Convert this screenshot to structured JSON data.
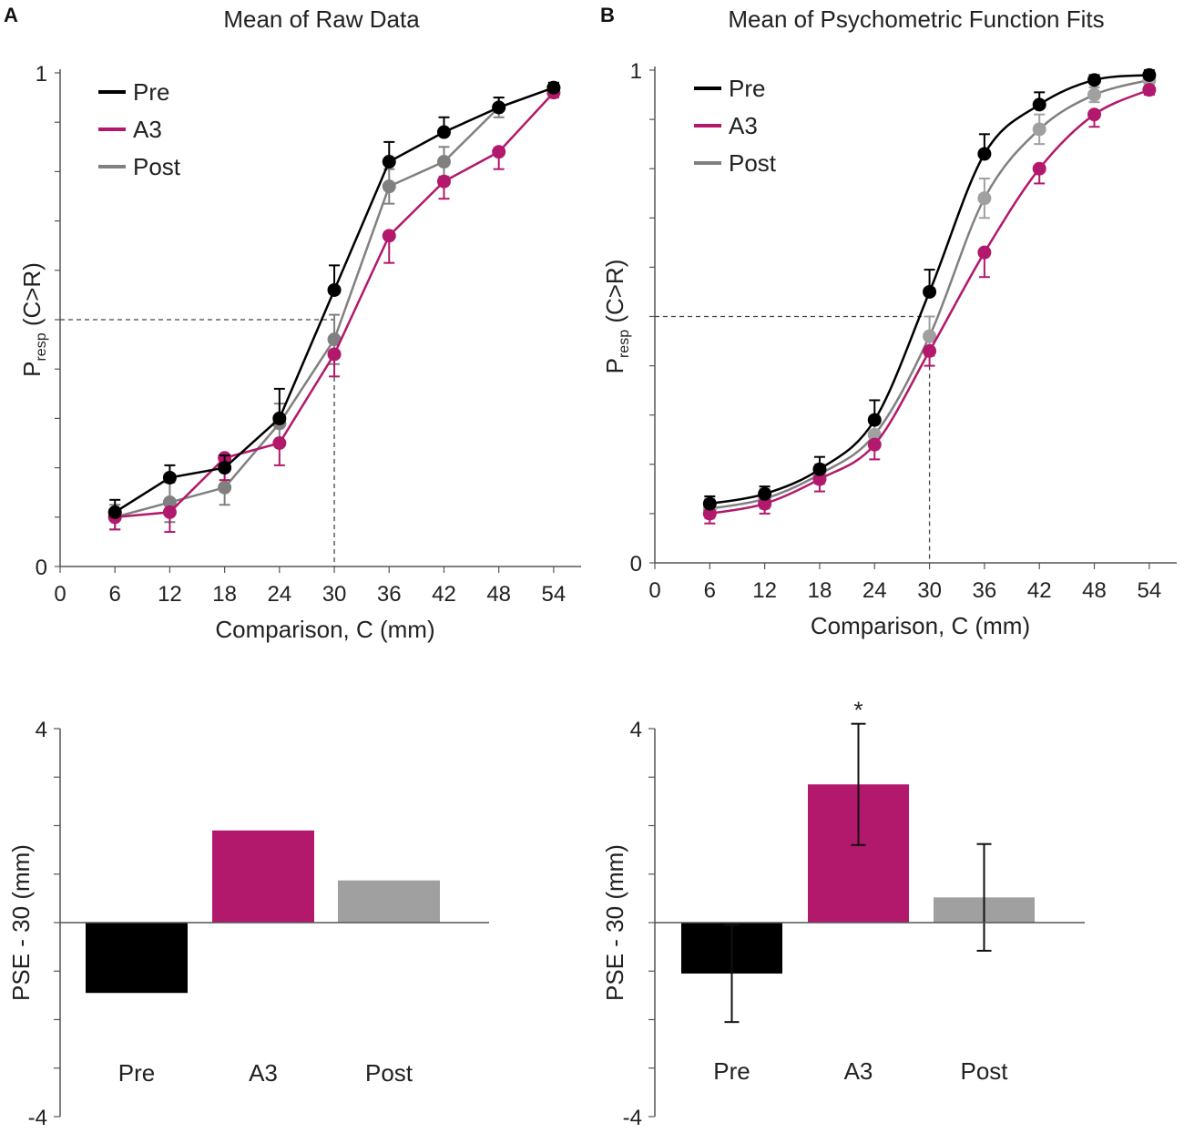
{
  "colors": {
    "Pre": "#000000",
    "A3": "#b2186b",
    "Post": "#808080",
    "Post_light": "#a0a0a0",
    "axis": "#555555"
  },
  "chart_data": [
    {
      "id": "raw",
      "panel_label": "A",
      "type": "line",
      "title": "Mean of Raw Data",
      "xlabel": "Comparison, C (mm)",
      "ylabel_main": "P",
      "ylabel_sub": "resp",
      "ylabel_rest": " (C>R)",
      "xlim": [
        0,
        57
      ],
      "ylim": [
        0,
        1
      ],
      "x_ticks": [
        0,
        6,
        12,
        18,
        24,
        30,
        36,
        42,
        48,
        54
      ],
      "y_tick_labels": [
        "0",
        "1"
      ],
      "reference_y": 0.5,
      "reference_x": 30,
      "x": [
        6,
        12,
        18,
        24,
        30,
        36,
        42,
        48,
        54
      ],
      "series": [
        {
          "name": "Pre",
          "values": [
            0.11,
            0.18,
            0.2,
            0.3,
            0.56,
            0.82,
            0.88,
            0.93,
            0.97
          ],
          "err": [
            0.025,
            0.025,
            0.025,
            0.06,
            0.05,
            0.04,
            0.03,
            0.02,
            0.01
          ]
        },
        {
          "name": "A3",
          "values": [
            0.1,
            0.11,
            0.22,
            0.25,
            0.43,
            0.67,
            0.78,
            0.84,
            0.96
          ],
          "err": [
            0.025,
            0.04,
            0.045,
            0.045,
            0.045,
            0.055,
            0.035,
            0.035,
            0.01
          ]
        },
        {
          "name": "Post",
          "values": [
            0.1,
            0.13,
            0.16,
            0.29,
            0.46,
            0.77,
            0.82,
            0.93,
            0.97
          ],
          "err": [
            0.025,
            0.04,
            0.035,
            0.04,
            0.05,
            0.035,
            0.03,
            0.02,
            0.01
          ]
        }
      ],
      "legend": [
        "Pre",
        "A3",
        "Post"
      ]
    },
    {
      "id": "fit",
      "panel_label": "B",
      "type": "line",
      "title": "Mean of Psychometric Function Fits",
      "xlabel": "Comparison, C (mm)",
      "ylabel_main": "P",
      "ylabel_sub": "resp",
      "ylabel_rest": " (C>R)",
      "xlim": [
        0,
        57
      ],
      "ylim": [
        0,
        1
      ],
      "x_ticks": [
        0,
        6,
        12,
        18,
        24,
        30,
        36,
        42,
        48,
        54
      ],
      "y_tick_labels": [
        "0",
        "1"
      ],
      "reference_y": 0.5,
      "reference_x": 30,
      "x": [
        6,
        12,
        18,
        24,
        30,
        36,
        42,
        48,
        54
      ],
      "series": [
        {
          "name": "Pre",
          "values": [
            0.12,
            0.14,
            0.19,
            0.29,
            0.55,
            0.83,
            0.93,
            0.98,
            0.99
          ],
          "err": [
            0.015,
            0.015,
            0.025,
            0.04,
            0.045,
            0.04,
            0.025,
            0.01,
            0.01
          ]
        },
        {
          "name": "A3",
          "values": [
            0.1,
            0.12,
            0.17,
            0.24,
            0.43,
            0.63,
            0.8,
            0.91,
            0.96
          ],
          "err": [
            0.02,
            0.02,
            0.025,
            0.03,
            0.03,
            0.05,
            0.03,
            0.025,
            0.01
          ]
        },
        {
          "name": "Post",
          "values": [
            0.11,
            0.13,
            0.18,
            0.26,
            0.46,
            0.74,
            0.88,
            0.95,
            0.98
          ],
          "err": [
            0.02,
            0.02,
            0.02,
            0.025,
            0.04,
            0.04,
            0.03,
            0.015,
            0.01
          ]
        }
      ],
      "legend": [
        "Pre",
        "A3",
        "Post"
      ]
    },
    {
      "id": "pse_raw",
      "type": "bar",
      "ylabel": "PSE - 30 (mm)",
      "ylim": [
        -4,
        4
      ],
      "y_tick_labels": [
        "4",
        "-4"
      ],
      "categories": [
        "Pre",
        "A3",
        "Post"
      ],
      "values": [
        -1.45,
        1.9,
        0.87
      ],
      "err": null
    },
    {
      "id": "pse_fit",
      "type": "bar",
      "ylabel": "PSE - 30 (mm)",
      "ylim": [
        -4,
        4
      ],
      "y_tick_labels": [
        "4",
        "-4"
      ],
      "categories": [
        "Pre",
        "A3",
        "Post"
      ],
      "values": [
        -1.05,
        2.85,
        0.52
      ],
      "err": [
        1.0,
        1.25,
        1.1
      ],
      "annotation": {
        "category": "A3",
        "text": "*"
      }
    }
  ]
}
